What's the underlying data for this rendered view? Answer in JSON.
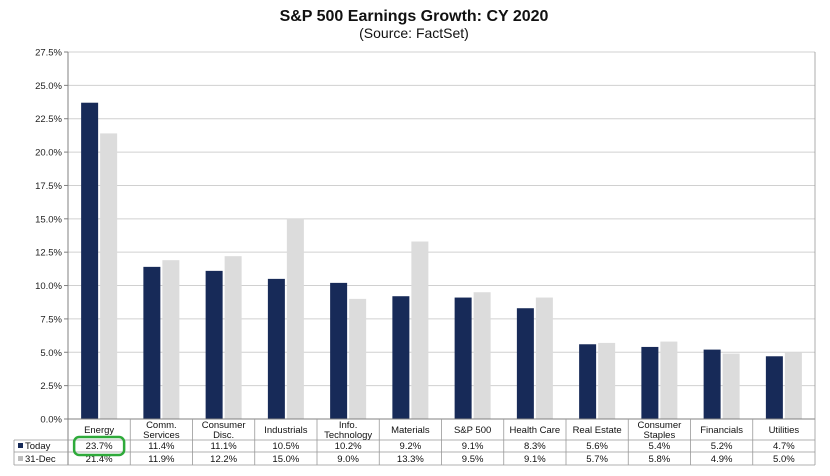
{
  "chart_data": {
    "type": "bar",
    "title": "S&P 500 Earnings Growth: CY 2020",
    "subtitle": "(Source: FactSet)",
    "categories": [
      [
        "Energy"
      ],
      [
        "Comm.",
        "Services"
      ],
      [
        "Consumer",
        "Disc."
      ],
      [
        "Industrials"
      ],
      [
        "Info.",
        "Technology"
      ],
      [
        "Materials"
      ],
      [
        "S&P 500"
      ],
      [
        "Health Care"
      ],
      [
        "Real Estate"
      ],
      [
        "Consumer",
        "Staples"
      ],
      [
        "Financials"
      ],
      [
        "Utilities"
      ]
    ],
    "series": [
      {
        "name": "Today",
        "color": "#172a58",
        "values": [
          23.7,
          11.4,
          11.1,
          10.5,
          10.2,
          9.2,
          9.1,
          8.3,
          5.6,
          5.4,
          5.2,
          4.7
        ],
        "labels": [
          "23.7%",
          "11.4%",
          "11.1%",
          "10.5%",
          "10.2%",
          "9.2%",
          "9.1%",
          "8.3%",
          "5.6%",
          "5.4%",
          "5.2%",
          "4.7%"
        ]
      },
      {
        "name": "31-Dec",
        "color": "#dcdcdc",
        "values": [
          21.4,
          11.9,
          12.2,
          15.0,
          9.0,
          13.3,
          9.5,
          9.1,
          5.7,
          5.8,
          4.9,
          5.0
        ],
        "labels": [
          "21.4%",
          "11.9%",
          "12.2%",
          "15.0%",
          "9.0%",
          "13.3%",
          "9.5%",
          "9.1%",
          "5.7%",
          "5.8%",
          "4.9%",
          "5.0%"
        ]
      }
    ],
    "ylim": [
      0,
      27.5
    ],
    "yticks": [
      "0.0%",
      "2.5%",
      "5.0%",
      "7.5%",
      "10.0%",
      "12.5%",
      "15.0%",
      "17.5%",
      "20.0%",
      "22.5%",
      "25.0%",
      "27.5%"
    ],
    "grid": true,
    "legend": "data-table",
    "highlight": {
      "series": 0,
      "category": 0,
      "color": "#2eaa3a"
    }
  }
}
